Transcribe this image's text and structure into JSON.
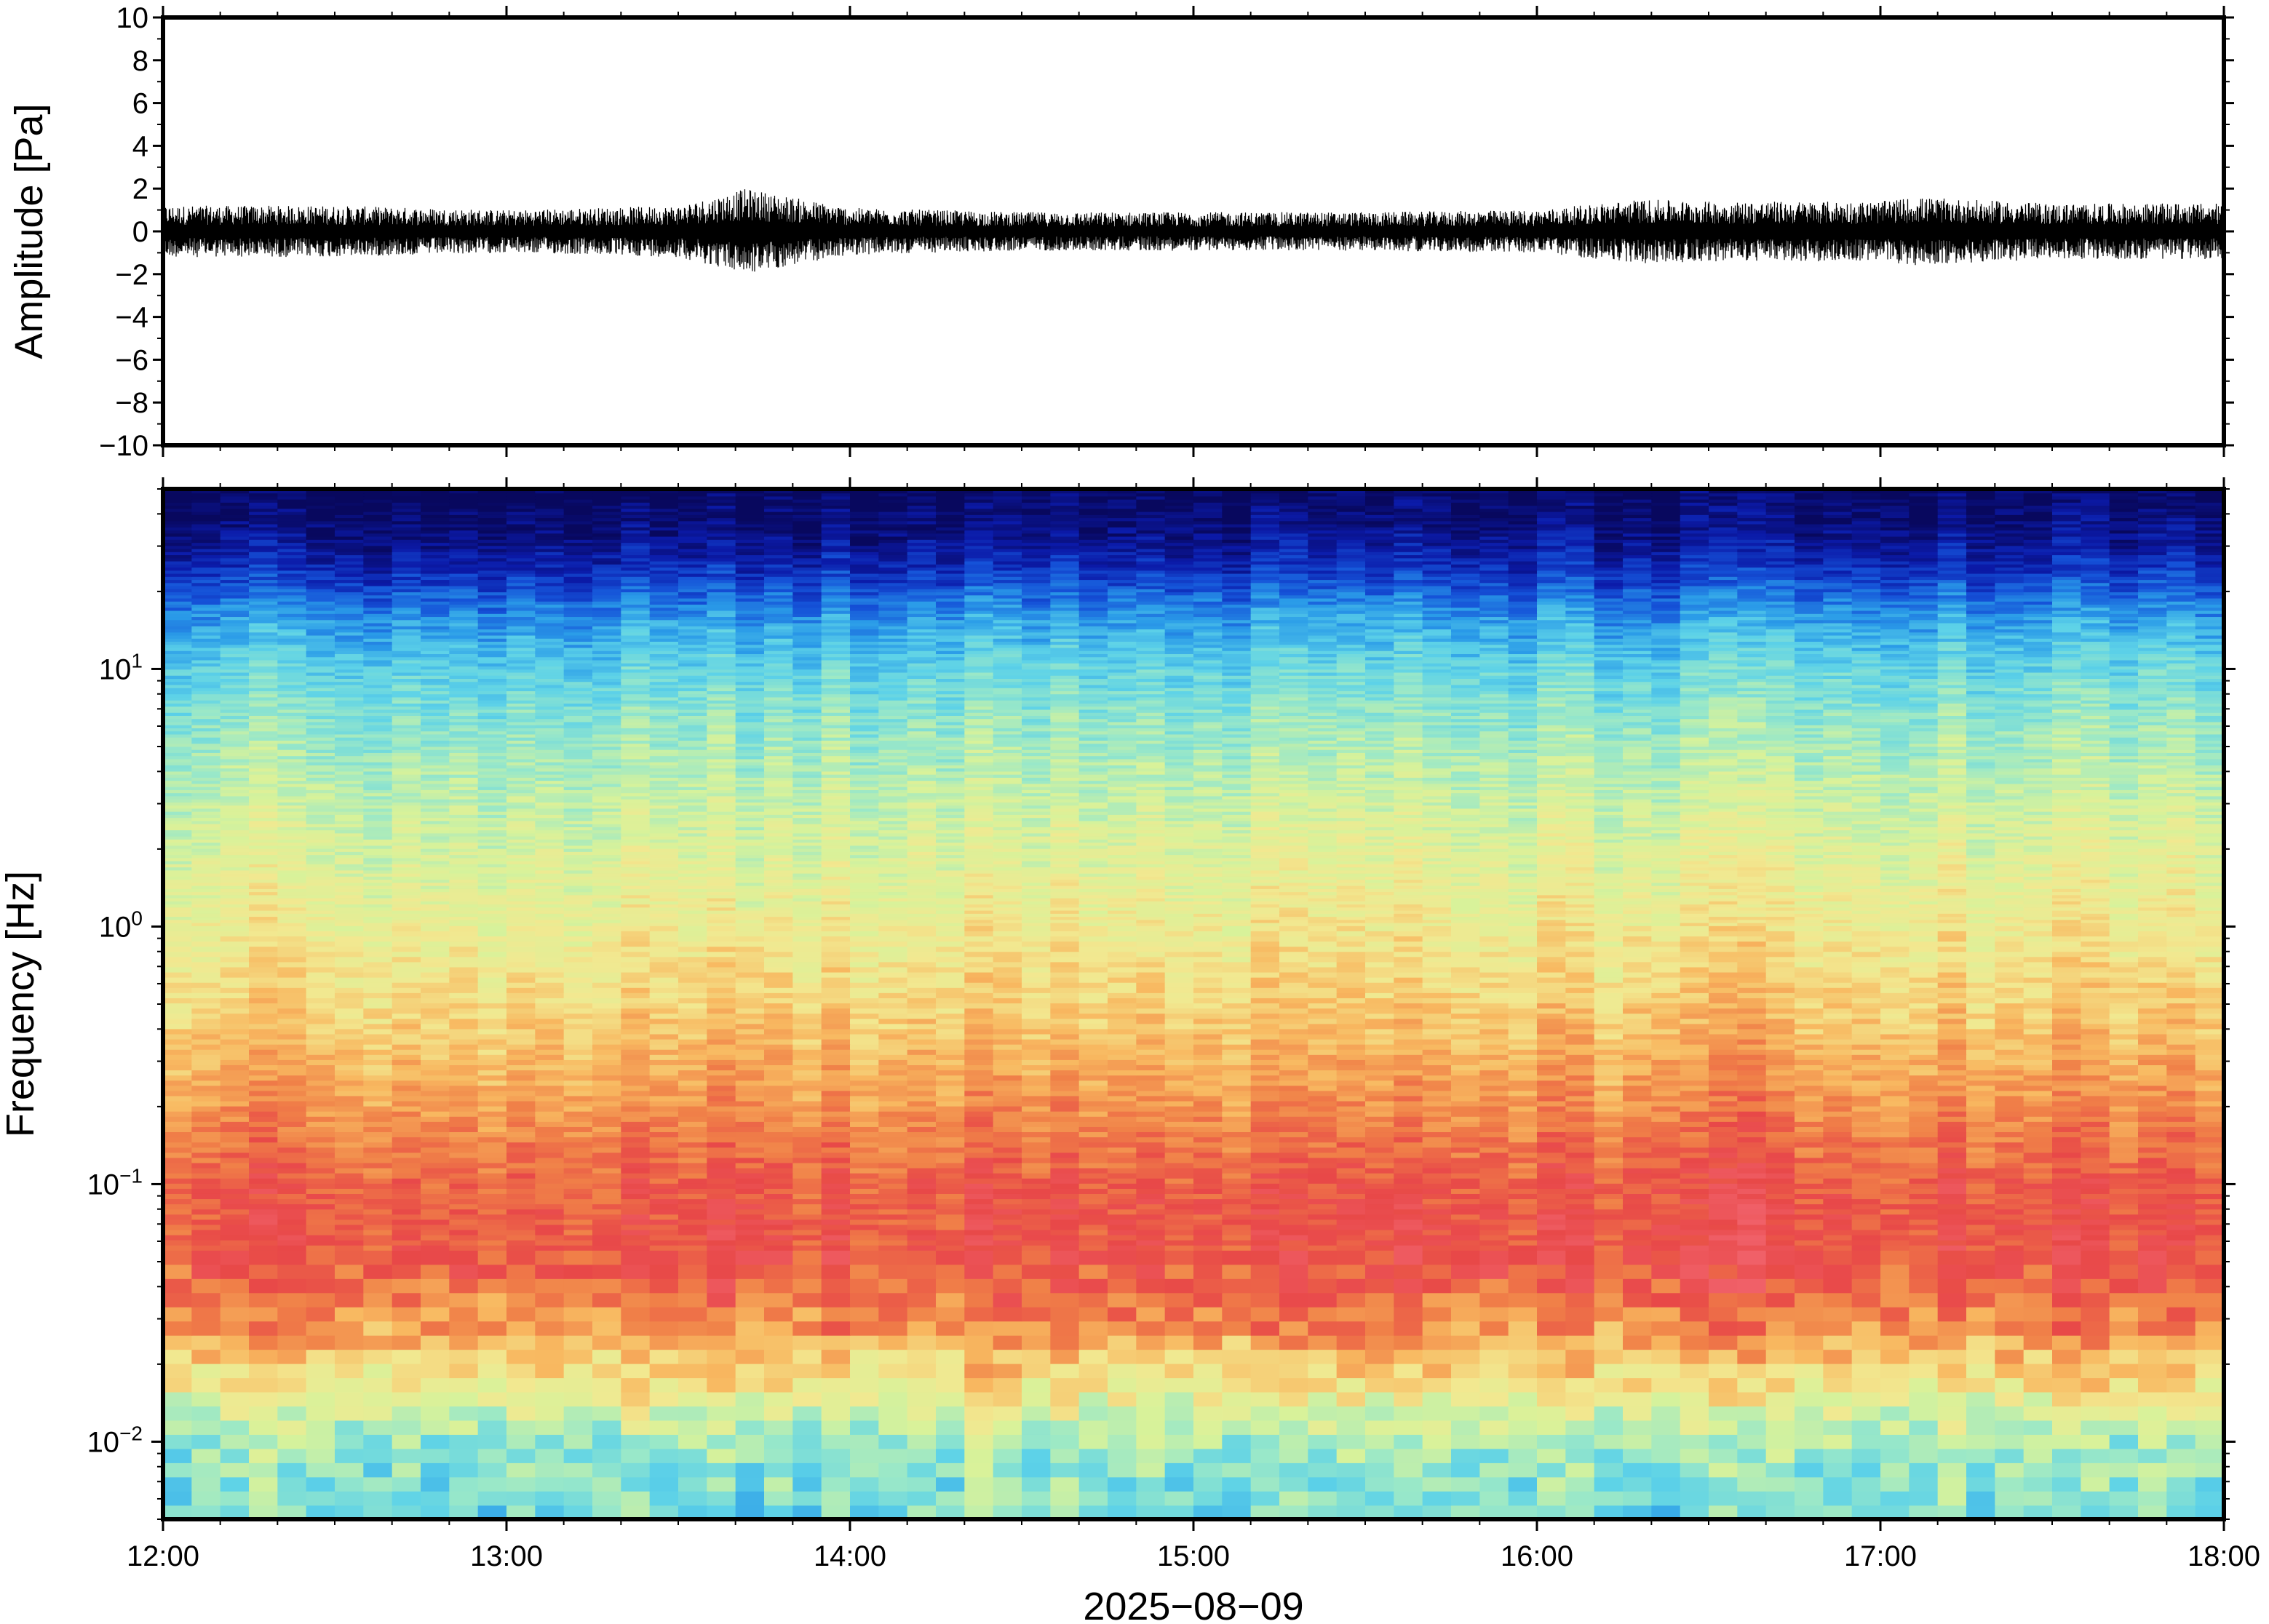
{
  "chart_data": [
    {
      "type": "line",
      "ylabel": "Amplitude [Pa]",
      "ylim": [
        -10,
        10
      ],
      "y_ticks": [
        -10,
        -8,
        -6,
        -4,
        -2,
        0,
        2,
        4,
        6,
        8,
        10
      ],
      "y_tick_labels": [
        "−10",
        "−8",
        "−6",
        "−4",
        "−2",
        "0",
        "2",
        "4",
        "6",
        "8",
        "10"
      ],
      "x_range": [
        "12:00",
        "18:00"
      ],
      "series": [
        {
          "values_description_envelope": [],
          "time_hours": [
            12.0,
            12.5,
            13.0,
            13.5,
            13.7,
            14.0,
            14.5,
            15.0,
            15.5,
            16.0,
            16.3,
            16.5,
            17.0,
            17.1,
            17.5,
            18.0
          ],
          "peak_amplitude": [
            1.2,
            1.2,
            1.0,
            1.2,
            2.0,
            1.1,
            0.9,
            0.9,
            0.9,
            1.0,
            1.5,
            1.4,
            1.4,
            1.6,
            1.3,
            1.3
          ]
        }
      ],
      "grid": false
    },
    {
      "type": "heatmap",
      "ylabel": "Frequency [Hz]",
      "yscale": "log",
      "ylim": [
        0.005,
        50
      ],
      "y_ticks": [
        0.01,
        0.1,
        1,
        10
      ],
      "y_tick_labels": [
        {
          "base": "10",
          "exp": "−2"
        },
        {
          "base": "10",
          "exp": "−1"
        },
        {
          "base": "10",
          "exp": "0"
        },
        {
          "base": "10",
          "exp": "1"
        }
      ],
      "xlabel": "2025−08−09",
      "x_ticks": [
        "12:00",
        "13:00",
        "14:00",
        "15:00",
        "16:00",
        "17:00",
        "18:00"
      ],
      "x_range_hours": [
        12,
        18
      ],
      "colormap": [
        "#08085e",
        "#0b1aa8",
        "#1552d8",
        "#2a9be8",
        "#5dd2e8",
        "#9ae8c8",
        "#d8f29a",
        "#f2e890",
        "#f8b860",
        "#f08048",
        "#e84848",
        "#f06068"
      ],
      "bright_events_hours": [
        13.7,
        16.35,
        16.6
      ],
      "grid": false
    }
  ]
}
